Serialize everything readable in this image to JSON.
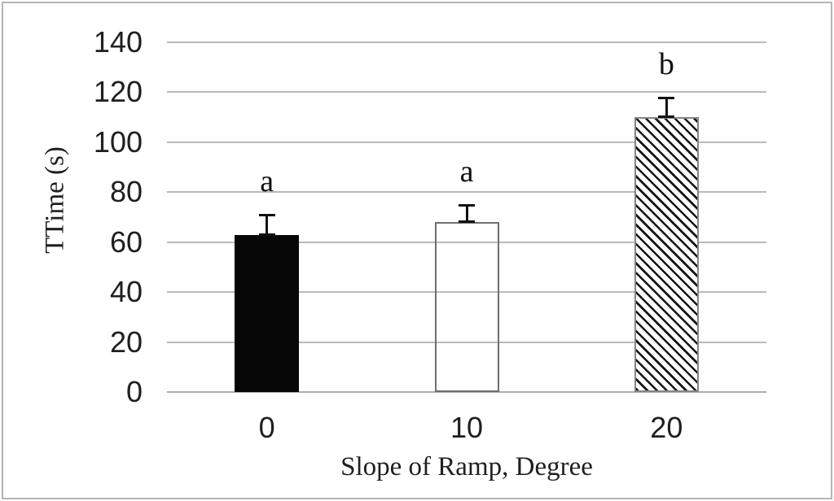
{
  "chart_data": {
    "type": "bar",
    "title": "",
    "categories": [
      "0",
      "10",
      "20"
    ],
    "values": [
      63,
      68,
      110
    ],
    "error_plus": [
      8,
      7,
      8
    ],
    "bar_significance_letters": [
      "a",
      "a",
      "b"
    ],
    "xlabel": "Slope of Ramp, Degree",
    "ylabel": "TTime (s)",
    "ylim": [
      0,
      140
    ],
    "yticks": [
      0,
      20,
      40,
      60,
      80,
      100,
      120,
      140
    ],
    "grid": "horizontal-only",
    "legend": "none",
    "bar_styles": [
      "solid-black",
      "white-outline",
      "diagonal-hatch"
    ],
    "colors": {
      "bar_fill_black": "#070707",
      "bar_outline_gray": "#6e6e6e",
      "hatch_stroke": "#141414",
      "gridline": "#b9b9b9",
      "axis_line": "#adadad",
      "frame_border": "#b5b5b5",
      "text": "#1f1f1f",
      "error_bar": "#111111"
    }
  }
}
